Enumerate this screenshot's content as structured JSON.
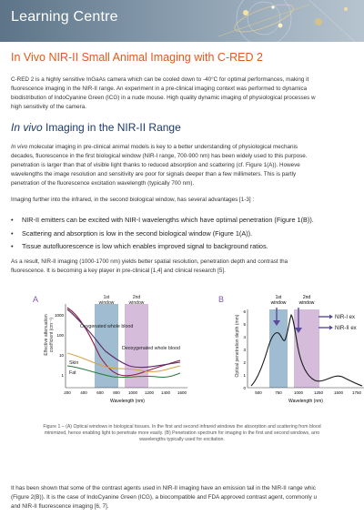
{
  "header": {
    "banner_title": "Learning Centre"
  },
  "title": "In Vivo NIR-II Small Animal Imaging with C-RED 2",
  "intro": [
    "C-RED 2 is a highly sensitive InGaAs camera which can be cooled down to -40°C for optimal performances, making it",
    "fluorescence imaging in the NIR-II range. An experiment in a pre-clinical imaging context was performed to dynamica",
    "biodistribution of IndoCyanine Green (ICG) in a nude mouse. High quality dynamic imaging of physiological processes w",
    "high sensitivity of the camera."
  ],
  "section": {
    "italic": "In vivo",
    "rest": " Imaging in the NIR-II Range"
  },
  "para1": [
    {
      "italic": "In vivo",
      "text": " molecular imaging in pre-clinical animal models is key to a better understanding of physiological mechanis"
    },
    {
      "italic": "",
      "text": "decades, fluorescence in the first biological window (NIR-I range, 700-900 nm) has been widely used to this purpose."
    },
    {
      "italic": "",
      "text": "penetration is larger than that of visible light thanks to reduced absorption and scattering (cf. Figure 1(A)). Howeve"
    },
    {
      "italic": "",
      "text": "wavelengths the image resolution and sensitivity are poor for signals deeper than a few millimeters. This is partly"
    },
    {
      "italic": "",
      "text": "penetration of the fluorescence excitation wavelength (typically 700 nm)."
    }
  ],
  "para2": "Imaging further into the infrared, in the second biological window, has several advantages [1-3] :",
  "bullets": [
    "NIR-II emitters can be excited with NIR-I wavelengths which have optimal penetration (Figure 1(B)).",
    "Scattering and absorption is low in the second biological window (Figure 1(A)).",
    "Tissue autofluorescence is low which enables improved signal to background ratios."
  ],
  "para3": [
    "As a result, NIR-II imaging (1000-1700 nm) yields better spatial resolution, penetration depth and contrast tha",
    "fluorescence. It is becoming a key player in pre-clinical [1,4] and clinical research [5]."
  ],
  "figure": {
    "panel_a": {
      "letter": "A",
      "window1": [
        "1st",
        "window"
      ],
      "window2": [
        "2nd",
        "window"
      ],
      "ylabel": [
        "Effective attenuation",
        "coefficient (cm⁻¹)"
      ],
      "xlabel": "Wavelength (nm)",
      "yticks": [
        "1000",
        "100",
        "10",
        "1"
      ],
      "xticks": [
        "200",
        "400",
        "600",
        "800",
        "1000",
        "1200",
        "1400",
        "1600"
      ],
      "labels": [
        "Oxygenated whole blood",
        "Deoxygenated whole blood",
        "Skin",
        "Fat"
      ]
    },
    "panel_b": {
      "letter": "B",
      "window1": [
        "1st",
        "window"
      ],
      "window2": [
        "2nd",
        "window"
      ],
      "ylabel": "Optical penetration depth (mm)",
      "xlabel": "Wavelength (nm)",
      "xticks": [
        "500",
        "750",
        "1000",
        "1250",
        "1500",
        "1750",
        "2000"
      ],
      "yticks": [
        "0",
        "1",
        "2",
        "3",
        "4",
        "5",
        "6"
      ],
      "legend": [
        "NIR-I ex",
        "NIR-II ex"
      ]
    },
    "caption": [
      "Figure 1 – (A) Optical windows in biological tissues. In the first and second infrared windows the absorption and scattering from blood",
      "minimized, hence enabling light to penetrate more easily. (B) Penetration spectrum for imaging in the first and second windows, arro",
      "wavelengths typically used for excitation."
    ]
  },
  "para4": [
    "It has been shown that some of the contrast agents used in NIR-II imaging have an emission tail in the NIR-II range whic",
    "(Figure 2(B)). It is the case of IndoCyanine Green (ICG), a biocompatible and FDA approved contrast agent, commonly u",
    "and NIR-II fluorescence imaging [6, 7]."
  ],
  "colors": {
    "title": "#e05a1e",
    "heading": "#1b3a6b",
    "window1": "#7fa6c2",
    "window2": "#c7a6cf",
    "arrow": "#5a4a9c"
  }
}
